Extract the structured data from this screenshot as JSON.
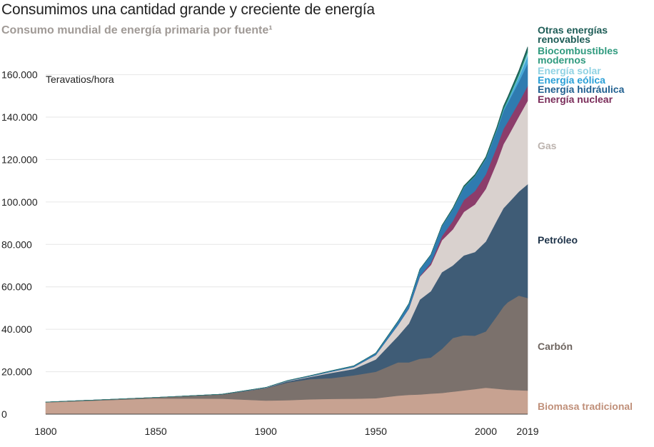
{
  "header": {
    "title": "Consumimos una cantidad grande y creciente de energía",
    "subtitle": "Consumo mundial de energía primaria por fuente¹"
  },
  "chart_data": {
    "type": "area",
    "stacked": true,
    "title": "Consumimos una cantidad grande y creciente de energía",
    "subtitle": "Consumo mundial de energía primaria por fuente¹",
    "unit_label": "Teravatios/hora",
    "ylim": [
      0,
      175000
    ],
    "yticks": [
      0,
      20000,
      40000,
      60000,
      80000,
      100000,
      120000,
      140000,
      160000
    ],
    "ytick_labels": [
      "0",
      "20.000",
      "40.000",
      "60.000",
      "80.000",
      "100.000",
      "120.000",
      "140.000",
      "160.000"
    ],
    "xlim": [
      1800,
      2019
    ],
    "xticks": [
      1800,
      1850,
      1900,
      1950,
      2000,
      2019
    ],
    "xtick_labels": [
      "1800",
      "1850",
      "1900",
      "1950",
      "2000",
      "2019"
    ],
    "x": [
      1800,
      1850,
      1880,
      1900,
      1910,
      1920,
      1930,
      1940,
      1950,
      1960,
      1965,
      1970,
      1975,
      1980,
      1985,
      1990,
      1995,
      2000,
      2005,
      2008,
      2010,
      2015,
      2019
    ],
    "series": [
      {
        "name": "Biomasa tradicional",
        "color": "#c7a291",
        "values": [
          5600,
          7400,
          7300,
          6400,
          6600,
          7000,
          7200,
          7300,
          7500,
          8700,
          9100,
          9300,
          9700,
          10000,
          10600,
          11200,
          11800,
          12500,
          12000,
          11700,
          11500,
          11300,
          11100
        ]
      },
      {
        "name": "Carbón",
        "color": "#7b716c",
        "values": [
          100,
          500,
          2000,
          5800,
          8300,
          9500,
          9800,
          11000,
          12500,
          15700,
          15300,
          16800,
          17000,
          20700,
          25300,
          26000,
          25200,
          26500,
          34200,
          39000,
          41300,
          44600,
          43700
        ]
      },
      {
        "name": "Petróleo",
        "color": "#3f5c76",
        "values": [
          0,
          0,
          100,
          200,
          600,
          1000,
          2500,
          3000,
          5800,
          12300,
          18300,
          27900,
          31300,
          36200,
          34200,
          37600,
          39400,
          42400,
          45100,
          46400,
          46500,
          49000,
          53600
        ]
      },
      {
        "name": "Gas",
        "color": "#d9d1ce",
        "values": [
          0,
          0,
          0,
          100,
          200,
          300,
          600,
          900,
          2100,
          5200,
          7000,
          10800,
          12300,
          15000,
          17000,
          20500,
          22400,
          24800,
          27300,
          30100,
          31500,
          35400,
          39300
        ]
      },
      {
        "name": "Energía nuclear",
        "color": "#8c3d6b",
        "values": [
          0,
          0,
          0,
          0,
          0,
          0,
          0,
          0,
          0,
          0,
          100,
          300,
          1000,
          1900,
          4000,
          5600,
          6300,
          6800,
          7300,
          7200,
          7100,
          6700,
          7000
        ]
      },
      {
        "name": "Energía hidráulica",
        "color": "#2f7bb0",
        "values": [
          0,
          0,
          0,
          100,
          200,
          300,
          400,
          600,
          900,
          1800,
          2300,
          3200,
          3800,
          4800,
          5600,
          6000,
          7000,
          7300,
          7900,
          8500,
          8900,
          9700,
          10500
        ]
      },
      {
        "name": "Energía eólica",
        "color": "#47a8d7",
        "values": [
          0,
          0,
          0,
          0,
          0,
          0,
          0,
          0,
          0,
          0,
          0,
          0,
          0,
          0,
          0,
          0,
          0,
          100,
          300,
          600,
          900,
          2200,
          3500
        ]
      },
      {
        "name": "Energía solar",
        "color": "#8fd2e3",
        "values": [
          0,
          0,
          0,
          0,
          0,
          0,
          0,
          0,
          0,
          0,
          0,
          0,
          0,
          0,
          0,
          0,
          0,
          0,
          0,
          0,
          100,
          700,
          1800
        ]
      },
      {
        "name": "Biocombustibles modernos",
        "color": "#2f9a7e",
        "values": [
          0,
          0,
          0,
          0,
          0,
          0,
          0,
          0,
          0,
          0,
          0,
          0,
          0,
          100,
          200,
          300,
          300,
          300,
          500,
          800,
          1000,
          1200,
          1300
        ]
      },
      {
        "name": "Otras energías renovables",
        "color": "#1d5c56",
        "values": [
          0,
          0,
          0,
          0,
          0,
          0,
          0,
          0,
          0,
          0,
          0,
          0,
          100,
          200,
          300,
          400,
          500,
          600,
          700,
          800,
          900,
          1100,
          1300
        ]
      }
    ],
    "legend_side": "right",
    "legend": [
      {
        "name": "Otras energías renovables",
        "lines": [
          "Otras energías",
          "renovables"
        ],
        "color": "#1d5c56"
      },
      {
        "name": "Biocombustibles modernos",
        "lines": [
          "Biocombustibles",
          "modernos"
        ],
        "color": "#2f9a7e"
      },
      {
        "name": "Energía solar",
        "lines": [
          "Energía solar"
        ],
        "color": "#8fd2e3"
      },
      {
        "name": "Energía eólica",
        "lines": [
          "Energía eólica"
        ],
        "color": "#2a9fd6"
      },
      {
        "name": "Energía hidráulica",
        "lines": [
          "Energía hidráulica"
        ],
        "color": "#1f5f8f"
      },
      {
        "name": "Energía nuclear",
        "lines": [
          "Energía nuclear"
        ],
        "color": "#7b2d5a"
      },
      {
        "name": "Gas",
        "lines": [
          "Gas"
        ],
        "color": "#bcb3ae"
      },
      {
        "name": "Petróleo",
        "lines": [
          "Petróleo"
        ],
        "color": "#1e3349"
      },
      {
        "name": "Carbón",
        "lines": [
          "Carbón"
        ],
        "color": "#6e6560"
      },
      {
        "name": "Biomasa tradicional",
        "lines": [
          "Biomasa tradicional"
        ],
        "color": "#c0907a"
      }
    ]
  }
}
